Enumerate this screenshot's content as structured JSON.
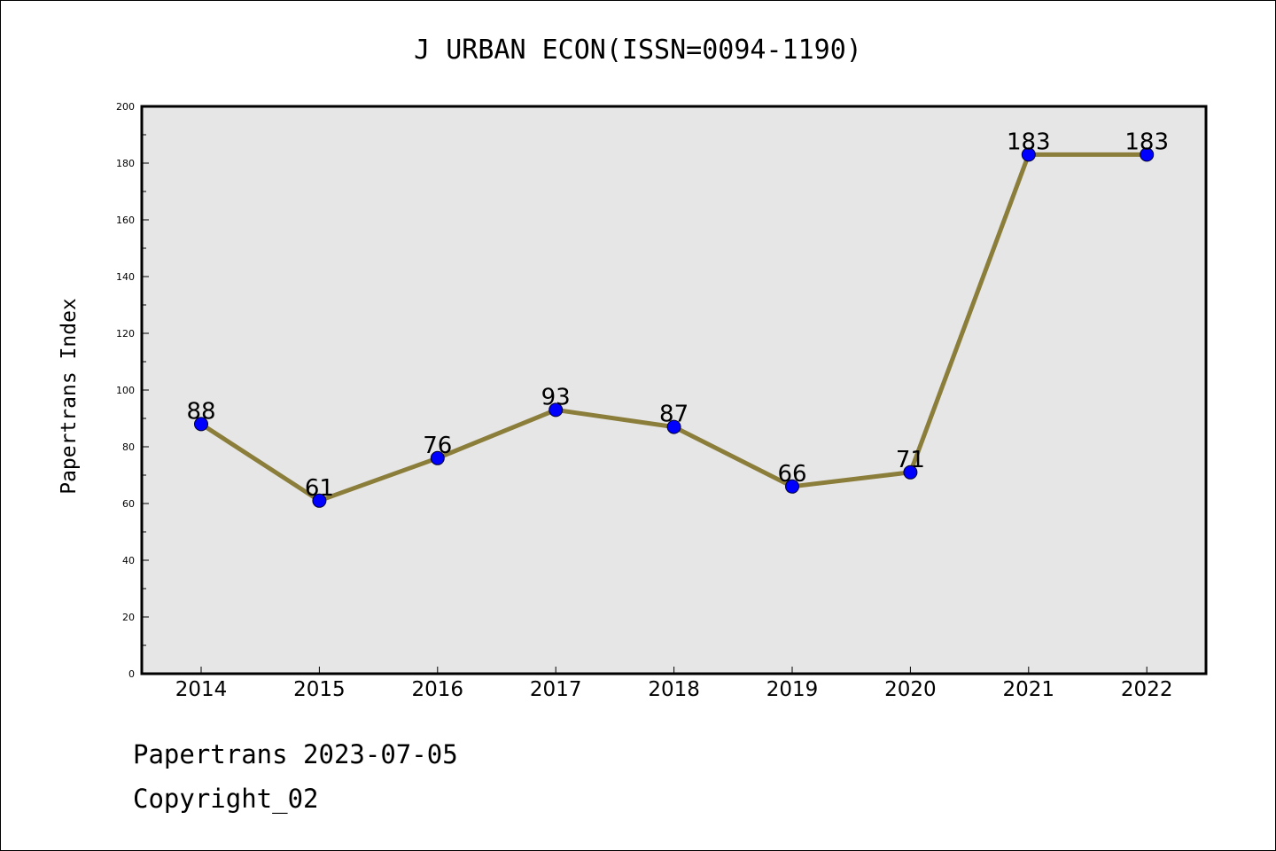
{
  "chart_data": {
    "type": "line",
    "title": "J URBAN ECON(ISSN=0094-1190)",
    "xlabel": "",
    "ylabel": "Papertrans Index",
    "categories": [
      "2014",
      "2015",
      "2016",
      "2017",
      "2018",
      "2019",
      "2020",
      "2021",
      "2022"
    ],
    "series": [
      {
        "values": [
          88,
          61,
          76,
          93,
          87,
          66,
          71,
          183,
          183
        ]
      }
    ],
    "ylim": [
      0,
      200
    ],
    "yticks": [
      0,
      20,
      40,
      60,
      80,
      100,
      120,
      140,
      160,
      180,
      200
    ],
    "grid": false,
    "colors": {
      "line": "#8B7D3A",
      "marker": "#0000FF",
      "plot_background": "#E6E6E6"
    }
  },
  "footer": {
    "source": "Papertrans 2023-07-05",
    "copyright": "Copyright_02"
  }
}
